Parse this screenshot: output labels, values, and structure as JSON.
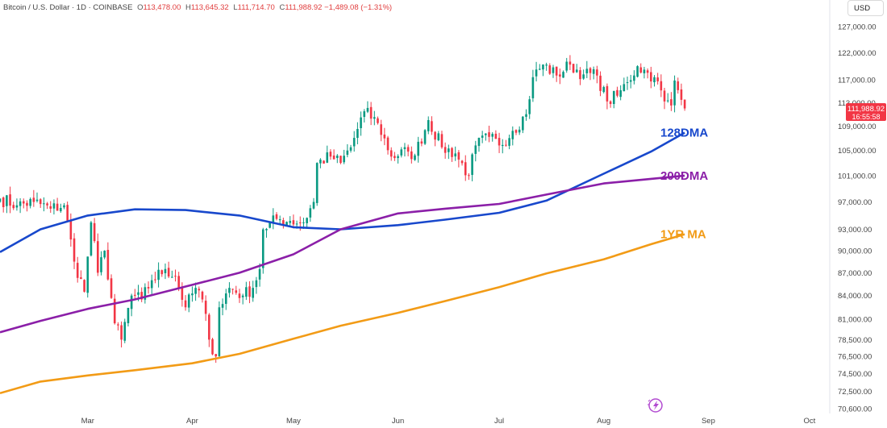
{
  "header": {
    "symbol": "Bitcoin / U.S. Dollar · 1D · COINBASE",
    "open_label": "O",
    "open": "113,478.00",
    "high_label": "H",
    "high": "113,645.32",
    "low_label": "L",
    "low": "111,714.70",
    "close_label": "C",
    "close": "111,988.92",
    "change": "−1,489.08 (−1.31%)"
  },
  "currency": "USD",
  "price_tag": {
    "price": "111,988.92",
    "countdown": "16:55:58",
    "color": "#f23645"
  },
  "colors": {
    "up": "#089981",
    "down": "#f23645",
    "ma128": "#1848cc",
    "ma200": "#8b1fa8",
    "ma1yr": "#f29b16"
  },
  "chart_data": {
    "type": "candlestick",
    "y_scale": "log",
    "ylim": [
      70600,
      130000
    ],
    "xlim": [
      "2025-02-03",
      "2025-10-07"
    ],
    "y_ticks": [
      {
        "value": 127000,
        "label": "127,000.00"
      },
      {
        "value": 122000,
        "label": "122,000.00"
      },
      {
        "value": 117000,
        "label": "117,000.00"
      },
      {
        "value": 113000,
        "label": "113,000.00"
      },
      {
        "value": 109000,
        "label": "109,000.00"
      },
      {
        "value": 105000,
        "label": "105,000.00"
      },
      {
        "value": 101000,
        "label": "101,000.00"
      },
      {
        "value": 97000,
        "label": "97,000.00"
      },
      {
        "value": 93000,
        "label": "93,000.00"
      },
      {
        "value": 90000,
        "label": "90,000.00"
      },
      {
        "value": 87000,
        "label": "87,000.00"
      },
      {
        "value": 84000,
        "label": "84,000.00"
      },
      {
        "value": 81000,
        "label": "81,000.00"
      },
      {
        "value": 78500,
        "label": "78,500.00"
      },
      {
        "value": 76500,
        "label": "76,500.00"
      },
      {
        "value": 74500,
        "label": "74,500.00"
      },
      {
        "value": 72500,
        "label": "72,500.00"
      },
      {
        "value": 70600,
        "label": "70,600.00"
      }
    ],
    "x_ticks": [
      {
        "date": "2025-03-01",
        "label": "Mar"
      },
      {
        "date": "2025-04-01",
        "label": "Apr"
      },
      {
        "date": "2025-05-01",
        "label": "May"
      },
      {
        "date": "2025-06-01",
        "label": "Jun"
      },
      {
        "date": "2025-07-01",
        "label": "Jul"
      },
      {
        "date": "2025-08-01",
        "label": "Aug"
      },
      {
        "date": "2025-09-01",
        "label": "Sep"
      },
      {
        "date": "2025-10-01",
        "label": "Oct"
      }
    ],
    "candle_close_path": [
      [
        "2025-02-03",
        97500
      ],
      [
        "2025-02-08",
        96500
      ],
      [
        "2025-02-13",
        97000
      ],
      [
        "2025-02-18",
        96000
      ],
      [
        "2025-02-22",
        96500
      ],
      [
        "2025-02-25",
        88500
      ],
      [
        "2025-02-28",
        84500
      ],
      [
        "2025-03-02",
        94000
      ],
      [
        "2025-03-04",
        87000
      ],
      [
        "2025-03-06",
        90000
      ],
      [
        "2025-03-09",
        80500
      ],
      [
        "2025-03-11",
        78500
      ],
      [
        "2025-03-14",
        84000
      ],
      [
        "2025-03-17",
        83500
      ],
      [
        "2025-03-20",
        86000
      ],
      [
        "2025-03-24",
        87500
      ],
      [
        "2025-03-27",
        86500
      ],
      [
        "2025-03-30",
        82500
      ],
      [
        "2025-04-02",
        85000
      ],
      [
        "2025-04-04",
        83500
      ],
      [
        "2025-04-06",
        78500
      ],
      [
        "2025-04-08",
        76500
      ],
      [
        "2025-04-09",
        82500
      ],
      [
        "2025-04-12",
        85000
      ],
      [
        "2025-04-16",
        84000
      ],
      [
        "2025-04-19",
        85000
      ],
      [
        "2025-04-21",
        87500
      ],
      [
        "2025-04-22",
        93000
      ],
      [
        "2025-04-26",
        94500
      ],
      [
        "2025-04-30",
        94200
      ],
      [
        "2025-05-04",
        94000
      ],
      [
        "2025-05-07",
        97000
      ],
      [
        "2025-05-08",
        103000
      ],
      [
        "2025-05-12",
        104000
      ],
      [
        "2025-05-15",
        103000
      ],
      [
        "2025-05-18",
        105500
      ],
      [
        "2025-05-22",
        111500
      ],
      [
        "2025-05-26",
        109500
      ],
      [
        "2025-05-30",
        104000
      ],
      [
        "2025-06-04",
        104800
      ],
      [
        "2025-06-06",
        104200
      ],
      [
        "2025-06-10",
        110000
      ],
      [
        "2025-06-14",
        105500
      ],
      [
        "2025-06-18",
        104500
      ],
      [
        "2025-06-22",
        101000
      ],
      [
        "2025-06-24",
        105800
      ],
      [
        "2025-06-28",
        107200
      ],
      [
        "2025-07-01",
        105800
      ],
      [
        "2025-07-05",
        108200
      ],
      [
        "2025-07-09",
        111000
      ],
      [
        "2025-07-11",
        117500
      ],
      [
        "2025-07-14",
        119800
      ],
      [
        "2025-07-18",
        117800
      ],
      [
        "2025-07-22",
        119800
      ],
      [
        "2025-07-26",
        118000
      ],
      [
        "2025-07-30",
        117800
      ],
      [
        "2025-08-02",
        113200
      ],
      [
        "2025-08-05",
        114200
      ],
      [
        "2025-08-08",
        116600
      ],
      [
        "2025-08-11",
        119500
      ],
      [
        "2025-08-14",
        118300
      ],
      [
        "2025-08-16",
        117500
      ],
      [
        "2025-08-19",
        113200
      ],
      [
        "2025-08-21",
        112500
      ],
      [
        "2025-08-22",
        116900
      ],
      [
        "2025-08-24",
        113478
      ],
      [
        "2025-08-25",
        111989
      ]
    ],
    "series": [
      {
        "name": "128DMA",
        "color": "#1848cc",
        "points": [
          [
            "2025-02-03",
            89800
          ],
          [
            "2025-02-15",
            93000
          ],
          [
            "2025-03-01",
            95000
          ],
          [
            "2025-03-15",
            95900
          ],
          [
            "2025-03-30",
            95800
          ],
          [
            "2025-04-15",
            95000
          ],
          [
            "2025-05-01",
            93300
          ],
          [
            "2025-05-15",
            93000
          ],
          [
            "2025-06-01",
            93600
          ],
          [
            "2025-06-15",
            94400
          ],
          [
            "2025-07-01",
            95400
          ],
          [
            "2025-07-15",
            97200
          ],
          [
            "2025-08-01",
            101300
          ],
          [
            "2025-08-15",
            104800
          ],
          [
            "2025-08-25",
            107900
          ]
        ]
      },
      {
        "name": "200DMA",
        "color": "#8b1fa8",
        "points": [
          [
            "2025-02-03",
            79400
          ],
          [
            "2025-02-15",
            80800
          ],
          [
            "2025-03-01",
            82300
          ],
          [
            "2025-03-15",
            83500
          ],
          [
            "2025-04-01",
            85400
          ],
          [
            "2025-04-15",
            87000
          ],
          [
            "2025-05-01",
            89500
          ],
          [
            "2025-05-15",
            93000
          ],
          [
            "2025-06-01",
            95300
          ],
          [
            "2025-06-15",
            96000
          ],
          [
            "2025-07-01",
            96700
          ],
          [
            "2025-07-15",
            98100
          ],
          [
            "2025-08-01",
            99800
          ],
          [
            "2025-08-15",
            100500
          ],
          [
            "2025-08-25",
            101000
          ]
        ]
      },
      {
        "name": "1YR MA",
        "color": "#f29b16",
        "points": [
          [
            "2025-02-03",
            72300
          ],
          [
            "2025-02-15",
            73600
          ],
          [
            "2025-03-01",
            74300
          ],
          [
            "2025-03-15",
            74900
          ],
          [
            "2025-04-01",
            75700
          ],
          [
            "2025-04-15",
            76800
          ],
          [
            "2025-05-01",
            78600
          ],
          [
            "2025-05-15",
            80200
          ],
          [
            "2025-06-01",
            81800
          ],
          [
            "2025-06-15",
            83300
          ],
          [
            "2025-07-01",
            85100
          ],
          [
            "2025-07-15",
            86900
          ],
          [
            "2025-08-01",
            88800
          ],
          [
            "2025-08-15",
            90900
          ],
          [
            "2025-08-25",
            92300
          ]
        ]
      }
    ]
  }
}
